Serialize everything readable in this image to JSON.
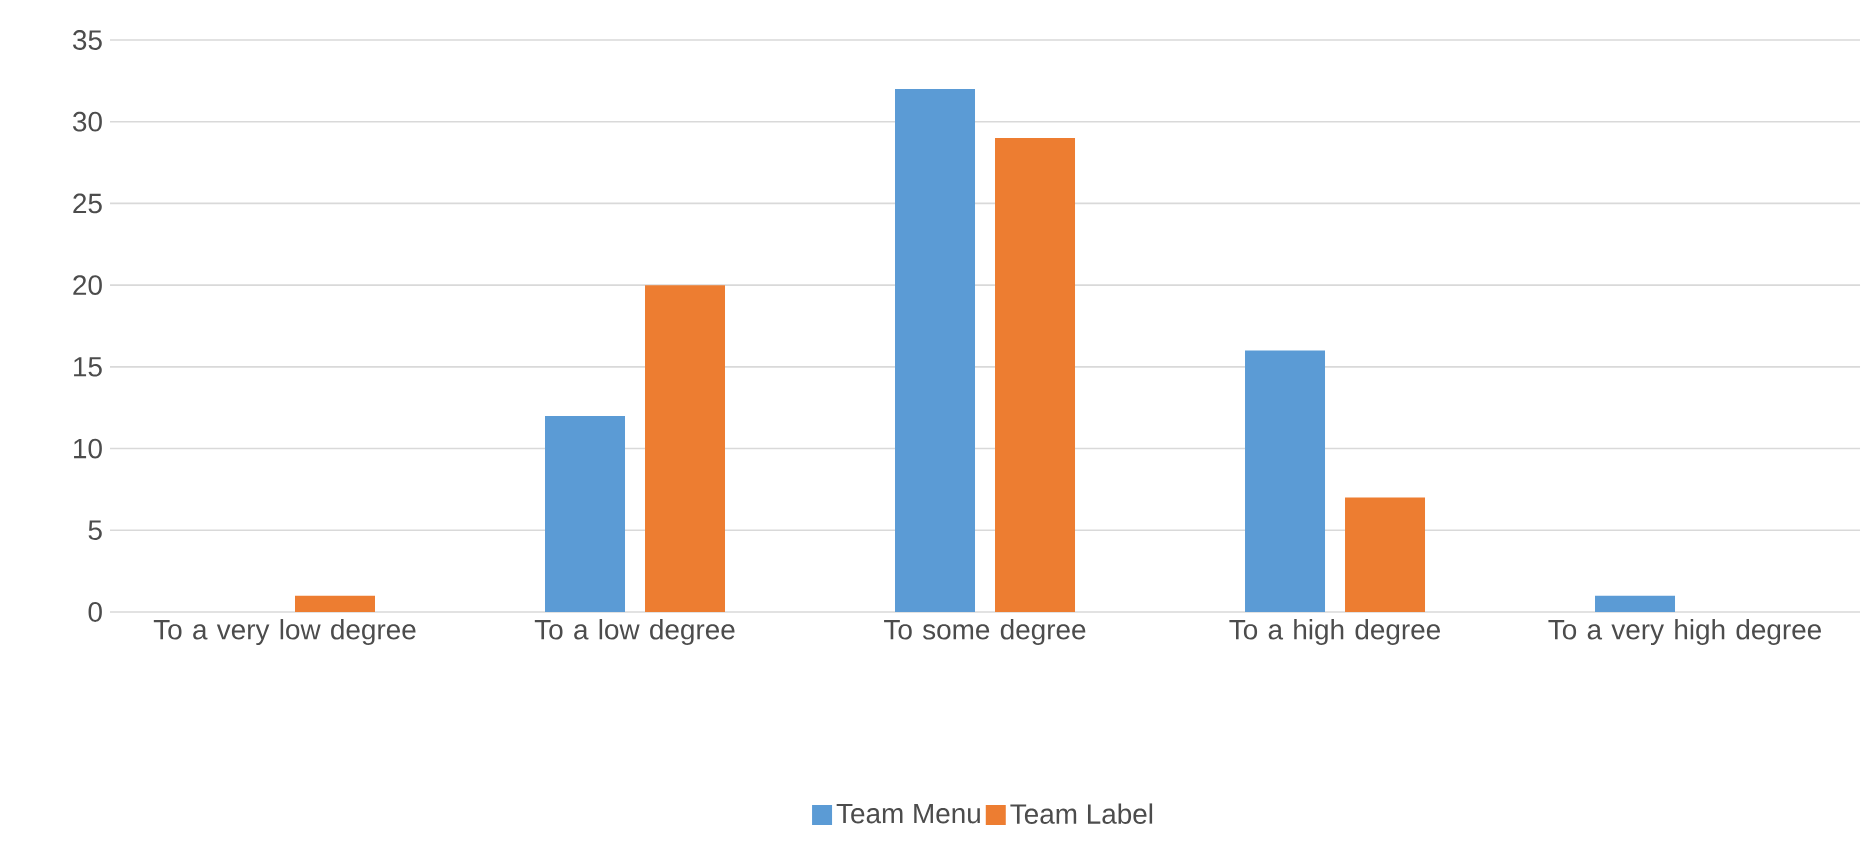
{
  "chart_data": {
    "type": "bar",
    "categories": [
      "To a very low degree",
      "To a low degree",
      "To some degree",
      "To a high degree",
      "To a very high degree"
    ],
    "series": [
      {
        "name": "Team Menu",
        "color": "#5b9bd5",
        "values": [
          0,
          12,
          32,
          16,
          1
        ]
      },
      {
        "name": "Team Label",
        "color": "#ed7d31",
        "values": [
          1,
          20,
          29,
          7,
          0
        ]
      }
    ],
    "ylim": [
      0,
      35
    ],
    "yticks": [
      0,
      5,
      10,
      15,
      20,
      25,
      30,
      35
    ],
    "grid": "y",
    "legend": "bottom"
  }
}
